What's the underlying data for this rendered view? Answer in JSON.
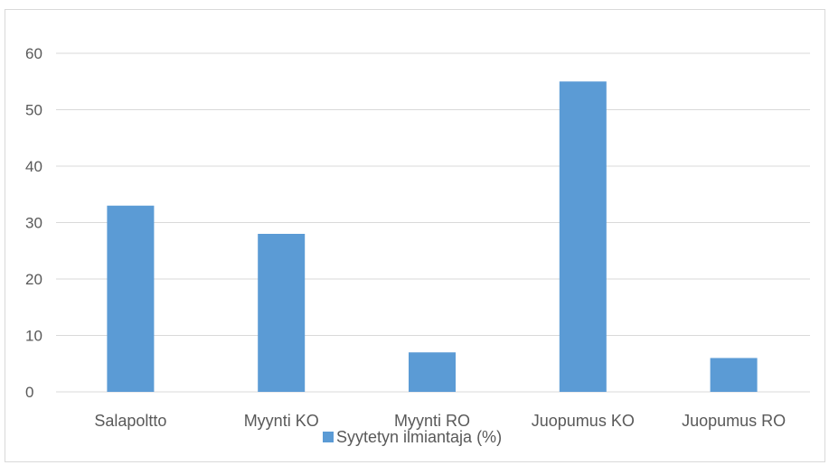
{
  "chart_data": {
    "type": "bar",
    "categories": [
      "Salapoltto",
      "Myynti KO",
      "Myynti RO",
      "Juopumus KO",
      "Juopumus RO"
    ],
    "series": [
      {
        "name": "Syytetyn ilmiantaja (%)",
        "values": [
          33,
          28,
          7,
          55,
          6
        ],
        "color": "#5b9bd5"
      }
    ],
    "ylim": [
      0,
      60
    ],
    "yticks": [
      0,
      10,
      20,
      30,
      40,
      50,
      60
    ],
    "grid": true,
    "legend": "bottom",
    "gridColor": "#d9d9d9",
    "axisColor": "#d9d9d9"
  }
}
